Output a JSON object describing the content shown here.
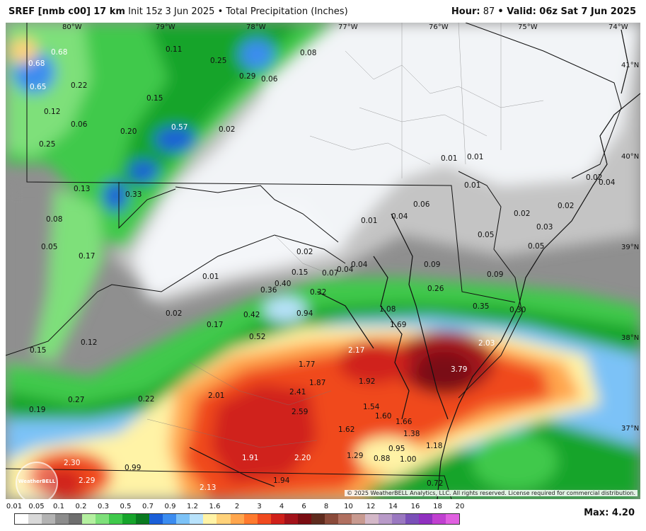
{
  "header": {
    "model": "SREF [nmb c00]",
    "resolution": "17 km",
    "init": "Init 15z 3 Jun 2025",
    "field": "• Total Precipitation (Inches)",
    "hour_label": "Hour:",
    "hour": "87",
    "valid": "• Valid: 06z Sat 7 Jun 2025"
  },
  "map": {
    "longitudes": [
      "80°W",
      "79°W",
      "78°W",
      "77°W",
      "76°W",
      "75°W",
      "74°W"
    ],
    "latitudes": [
      "41°N",
      "40°N",
      "39°N",
      "38°N",
      "37°N"
    ],
    "values": [
      "0.68",
      "0.68",
      "0.65",
      "0.22",
      "0.11",
      "0.25",
      "0.08",
      "0.29",
      "0.06",
      "0.12",
      "0.06",
      "0.15",
      "0.20",
      "0.57",
      "0.02",
      "0.25",
      "0.13",
      "0.33",
      "0.01",
      "0.01",
      "0.01",
      "0.02",
      "0.04",
      "0.06",
      "0.02",
      "0.04",
      "0.01",
      "0.02",
      "0.03",
      "0.05",
      "0.05",
      "0.08",
      "0.05",
      "0.17",
      "0.02",
      "0.01",
      "0.04",
      "0.09",
      "0.07",
      "0.04",
      "0.15",
      "0.09",
      "0.40",
      "0.36",
      "0.32",
      "0.26",
      "0.35",
      "0.30",
      "0.02",
      "0.42",
      "0.94",
      "1.08",
      "1.69",
      "0.17",
      "0.52",
      "2.03",
      "0.15",
      "0.12",
      "2.17",
      "3.79",
      "1.77",
      "1.87",
      "1.92",
      "2.01",
      "2.41",
      "0.19",
      "0.27",
      "0.22",
      "2.59",
      "1.54",
      "1.60",
      "1.66",
      "1.62",
      "1.38",
      "0.95",
      "1.18",
      "1.29",
      "0.88",
      "1.00",
      "2.30",
      "0.99",
      "1.91",
      "2.20",
      "2.29",
      "1.94",
      "2.13",
      "0.72"
    ],
    "logo_text": "WeatherBELL",
    "copyright": "© 2025 WeatherBELL Analytics, LLC. All rights reserved. License required for commercial distribution."
  },
  "legend": {
    "labels": [
      "0.01",
      "0.05",
      "0.1",
      "0.2",
      "0.3",
      "0.5",
      "0.7",
      "0.9",
      "1.2",
      "1.6",
      "2",
      "3",
      "4",
      "6",
      "8",
      "10",
      "12",
      "14",
      "16",
      "18",
      "20"
    ],
    "colors": [
      "#ffffff",
      "#d9d9d9",
      "#b3b3b3",
      "#8c8c8c",
      "#6e6e6e",
      "#b4f0a0",
      "#7ee07a",
      "#3fc94b",
      "#16a42b",
      "#0a7a20",
      "#1a5fd8",
      "#3b8cf0",
      "#7cc2f7",
      "#b8e2fb",
      "#fff3a6",
      "#ffd27a",
      "#ffa64d",
      "#ff7a2e",
      "#f04a1f",
      "#d0201a",
      "#a3121a",
      "#7a0d12",
      "#5e2b1e",
      "#8a4a3a",
      "#b07060",
      "#c89a90",
      "#d4b8c8",
      "#b89ac8",
      "#9a78c0",
      "#7a50b8",
      "#9030c0",
      "#c040d0",
      "#e060e0"
    ],
    "max_label": "Max: 4.20"
  }
}
